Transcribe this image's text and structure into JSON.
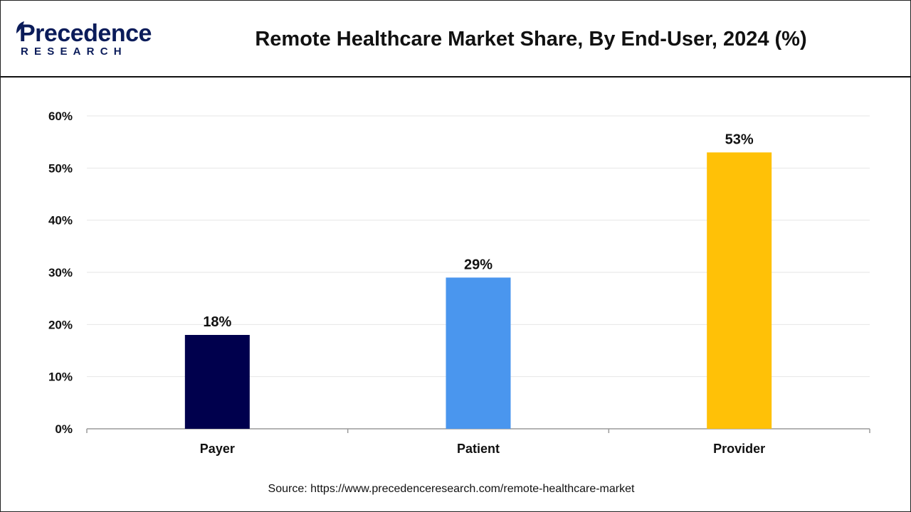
{
  "header": {
    "logo_top": "Precedence",
    "logo_bottom": "RESEARCH",
    "title": "Remote Healthcare Market Share, By End-User, 2024 (%)"
  },
  "footer": {
    "source": "Source: https://www.precedenceresearch.com/remote-healthcare-market"
  },
  "colors": {
    "brand": "#0b1c5a",
    "payer": "#00004d",
    "patient": "#4a96ee",
    "provider": "#ffc107"
  },
  "chart_data": {
    "type": "bar",
    "categories": [
      "Payer",
      "Patient",
      "Provider"
    ],
    "values": [
      18,
      29,
      53
    ],
    "data_labels": [
      "18%",
      "29%",
      "53%"
    ],
    "colors": [
      "#00004d",
      "#4a96ee",
      "#ffc107"
    ],
    "ylim": [
      0,
      60
    ],
    "yticks": [
      0,
      10,
      20,
      30,
      40,
      50,
      60
    ],
    "ytick_labels": [
      "0%",
      "10%",
      "20%",
      "30%",
      "40%",
      "50%",
      "60%"
    ],
    "grid": true,
    "legend": "none"
  }
}
